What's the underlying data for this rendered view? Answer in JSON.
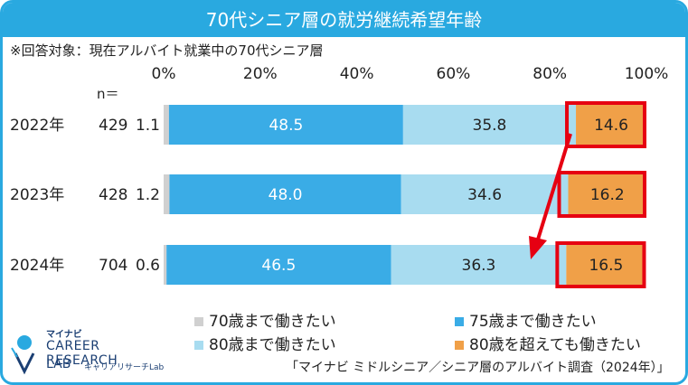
{
  "header": {
    "title": "70代シニア層の就労継続希望年齢"
  },
  "subtitle": "※回答対象：現在アルバイト就業中の70代シニア層",
  "n_label": "n＝",
  "legend": [
    {
      "label": "70歳まで働きたい",
      "color": "#d0d0d0"
    },
    {
      "label": "75歳まで働きたい",
      "color": "#3aace6"
    },
    {
      "label": "80歳まで働きたい",
      "color": "#a8dcf0"
    },
    {
      "label": "80歳を超えても働きたい",
      "color": "#f0a048"
    }
  ],
  "source": "「マイナビ ミドルシニア／シニア層のアルバイト調査（2024年）」",
  "logo": {
    "brand": "マイナビ",
    "line1": "CAREER RESEARCH",
    "line2": "LAB",
    "line3": "キャリアリサーチLab"
  },
  "chart_data": {
    "type": "bar",
    "orientation": "horizontal",
    "stacked": true,
    "categories": [
      "2022年",
      "2023年",
      "2024年"
    ],
    "n": [
      "429",
      "428",
      "704"
    ],
    "xlim": [
      0,
      100
    ],
    "x_ticks": [
      "0%",
      "20%",
      "40%",
      "60%",
      "80%",
      "100%"
    ],
    "series": [
      {
        "name": "70歳まで働きたい",
        "values": [
          1.1,
          1.2,
          0.6
        ],
        "labels": [
          "1.1",
          "1.2",
          "0.6"
        ]
      },
      {
        "name": "75歳まで働きたい",
        "values": [
          48.5,
          48.0,
          46.5
        ],
        "labels": [
          "48.5",
          "48.0",
          "46.5"
        ]
      },
      {
        "name": "80歳まで働きたい",
        "values": [
          35.8,
          34.6,
          36.3
        ],
        "labels": [
          "35.8",
          "34.6",
          "36.3"
        ]
      },
      {
        "name": "80歳を超えても働きたい",
        "values": [
          14.6,
          16.2,
          16.5
        ],
        "labels": [
          "14.6",
          "16.2",
          "16.5"
        ]
      }
    ],
    "highlight_series": "80歳を超えても働きたい",
    "highlight_color": "#e60012",
    "annotation": "arrow-from-2022-to-2024"
  }
}
